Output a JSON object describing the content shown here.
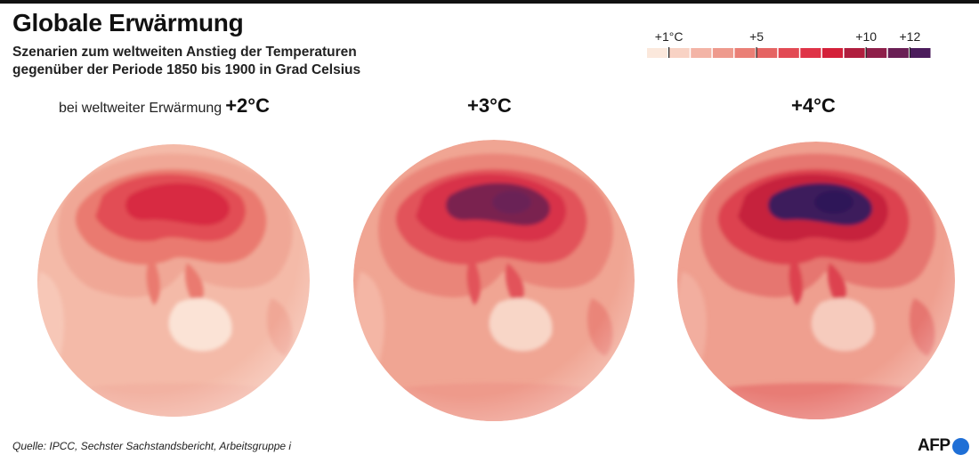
{
  "header": {
    "title": "Globale Erwärmung",
    "subtitle_line1": "Szenarien zum weltweiten Anstieg der Temperaturen",
    "subtitle_line2": "gegenüber der Periode 1850 bis 1900 in Grad Celsius"
  },
  "legend": {
    "ticks": [
      {
        "label": "+1°C",
        "value": 1
      },
      {
        "label": "+5",
        "value": 5
      },
      {
        "label": "+10",
        "value": 10
      },
      {
        "label": "+12",
        "value": 12
      }
    ],
    "colors": [
      "#fbe8dc",
      "#f8d2c4",
      "#f3b4a6",
      "#ee9a8d",
      "#ea7f76",
      "#e56463",
      "#e24a54",
      "#df3347",
      "#d42039",
      "#b01e3e",
      "#8e1f4a",
      "#6a1f55",
      "#4b1c5c"
    ]
  },
  "panels": [
    {
      "label_prefix": "bei weltweiter Erwärmung",
      "label": "+2°C",
      "ocean": "#f4baa8",
      "land_base": "#f0a796",
      "hot_a": "#ea7a6f",
      "hot_b": "#e24e55",
      "hot_core": "#d82a42",
      "hot_extreme": "#d82a42",
      "africa": "#f7c7b7",
      "australia": "#fbe3d6",
      "antarctica": "#f2b2a2"
    },
    {
      "label_prefix": "",
      "label": "+3°C",
      "ocean": "#f0a593",
      "land_base": "#ea8579",
      "hot_a": "#e2535a",
      "hot_b": "#d8334a",
      "hot_core": "#7a2350",
      "hot_extreme": "#6a2356",
      "africa": "#f4b6a5",
      "australia": "#f8d6c7",
      "antarctica": "#ee9a8b"
    },
    {
      "label_prefix": "",
      "label": "+4°C",
      "ocean": "#ef9f8f",
      "land_base": "#e6766f",
      "hot_a": "#dd4350",
      "hot_b": "#c6243c",
      "hot_core": "#3d1a5c",
      "hot_extreme": "#2e1658",
      "africa": "#f2ae9f",
      "australia": "#f6cbbd",
      "antarctica": "#e87c74"
    }
  ],
  "footer": {
    "source": "Quelle: IPCC, Sechster Sachstandsbericht, Arbeitsgruppe i",
    "logo_text": "AFP",
    "logo_dot_color": "#1f6fd6"
  }
}
